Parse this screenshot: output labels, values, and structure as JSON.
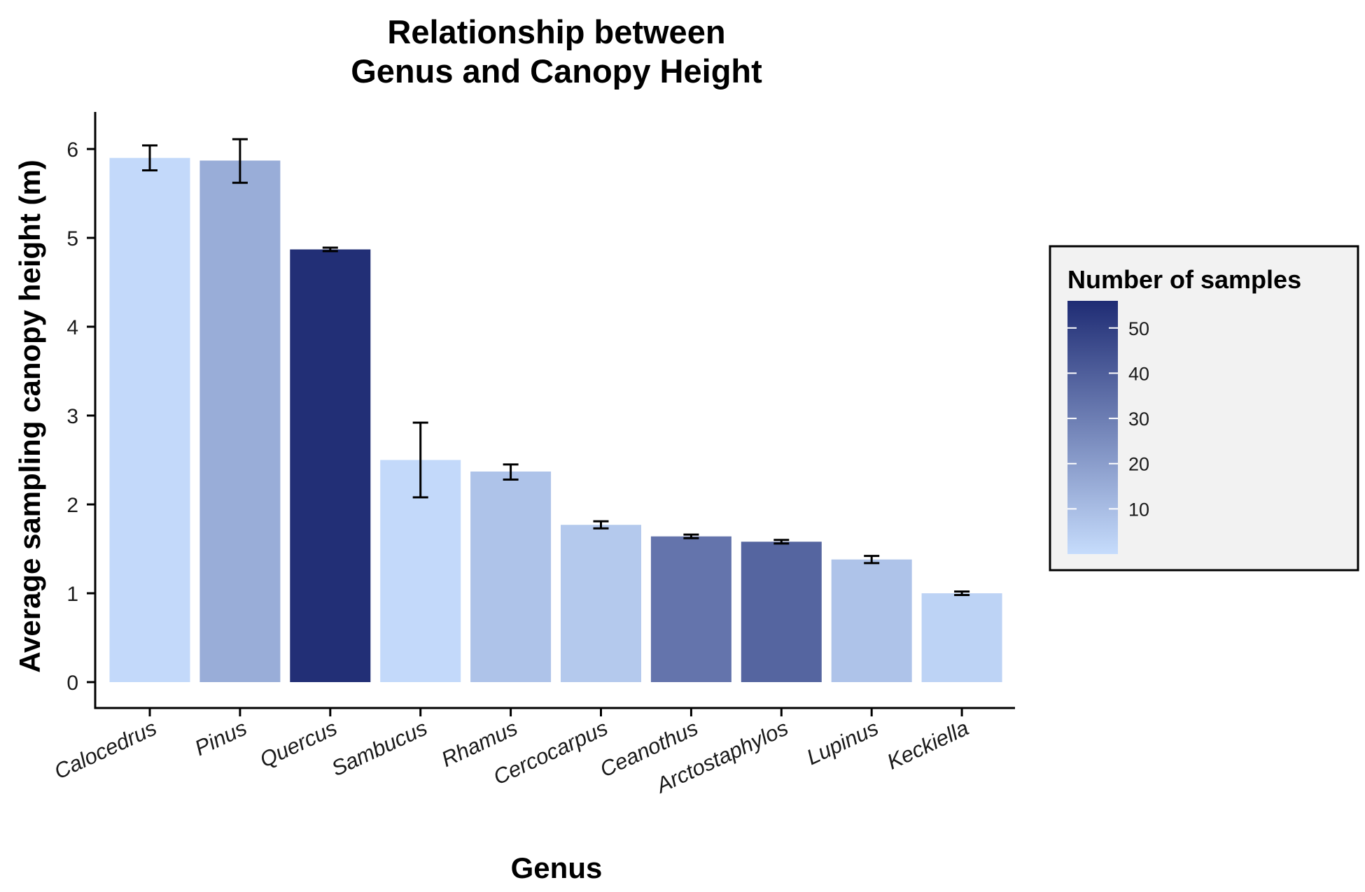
{
  "chart_data": {
    "type": "bar",
    "title_lines": [
      "Relationship between",
      "Genus and Canopy Height"
    ],
    "xlabel": "Genus",
    "ylabel": "Average sampling canopy height (m)",
    "ylim": [
      0,
      6.4
    ],
    "yticks": [
      0,
      1,
      2,
      3,
      4,
      5,
      6
    ],
    "grid": false,
    "categories": [
      "Calocedrus",
      "Pinus",
      "Quercus",
      "Sambucus",
      "Rhamus",
      "Cercocarpus",
      "Ceanothus",
      "Arctostaphylos",
      "Lupinus",
      "Keckiella"
    ],
    "values": [
      5.9,
      5.87,
      4.87,
      2.5,
      2.37,
      1.77,
      1.64,
      1.58,
      1.38,
      1.0
    ],
    "error_low": [
      5.76,
      5.62,
      4.85,
      2.08,
      2.28,
      1.73,
      1.62,
      1.56,
      1.34,
      0.98
    ],
    "error_high": [
      6.04,
      6.11,
      4.89,
      2.92,
      2.45,
      1.81,
      1.66,
      1.6,
      1.42,
      1.02
    ],
    "sample_counts": [
      1,
      15,
      55,
      1,
      8,
      6,
      33,
      38,
      8,
      3
    ],
    "legend": {
      "title": "Number of samples",
      "placement": "right",
      "ticks": [
        10,
        20,
        30,
        40,
        50
      ],
      "range": [
        0,
        56
      ],
      "color_low": "#c6dcfc",
      "color_high": "#1f2c74",
      "background": "#f2f2f2"
    },
    "error_bar_color": "#000000"
  }
}
